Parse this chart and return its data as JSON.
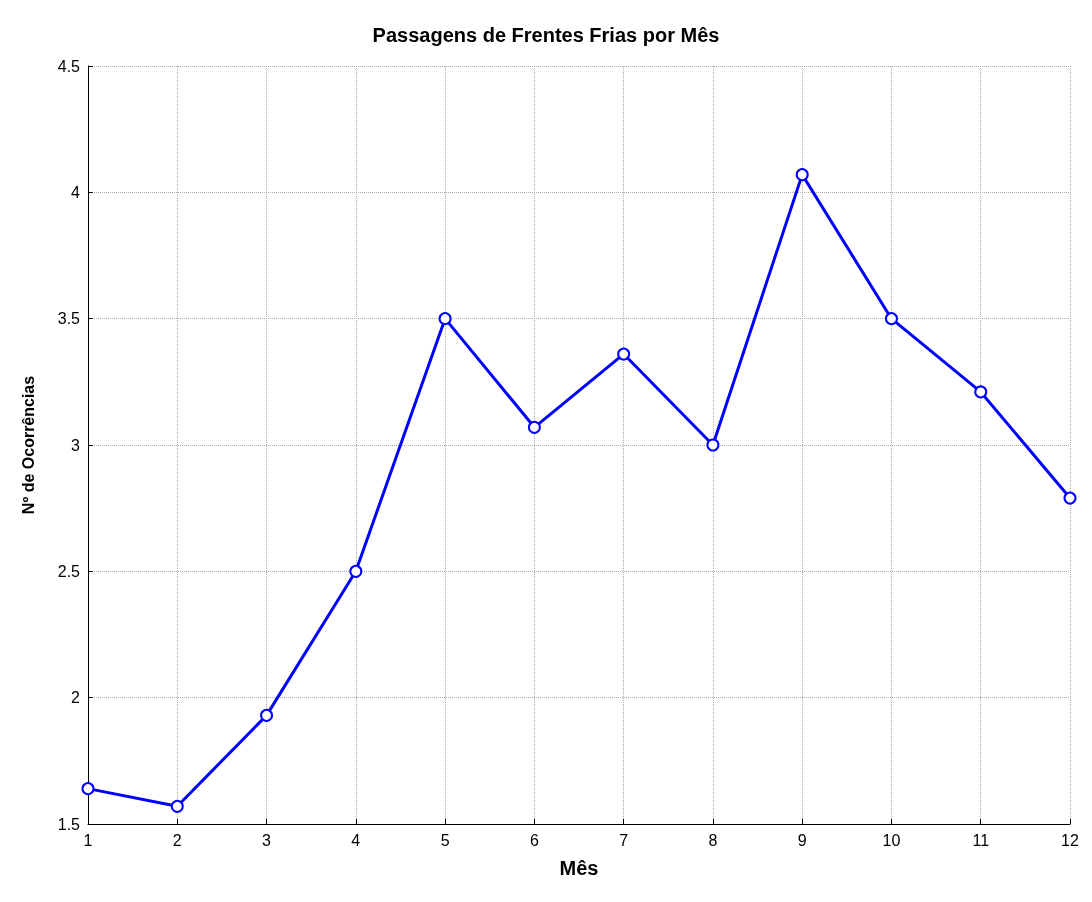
{
  "chart_data": {
    "type": "line",
    "title": "Passagens de Frentes Frias por Mês",
    "xlabel": "Mês",
    "ylabel": "Nº de Ocorrências",
    "x": [
      1,
      2,
      3,
      4,
      5,
      6,
      7,
      8,
      9,
      10,
      11,
      12
    ],
    "series": [
      {
        "color": "#0000ff",
        "values": [
          1.64,
          1.57,
          1.93,
          2.5,
          3.5,
          3.07,
          3.36,
          3,
          4.07,
          3.5,
          3.21,
          2.79
        ]
      }
    ],
    "xlim": [
      1,
      12
    ],
    "xticks": [
      1,
      2,
      3,
      4,
      5,
      6,
      7,
      8,
      9,
      10,
      11,
      12
    ],
    "ylim": [
      1.5,
      4.5
    ],
    "yticks": [
      1.5,
      2,
      2.5,
      3,
      3.5,
      4,
      4.5
    ],
    "grid": true,
    "marker": "circle",
    "line_style": "solid"
  }
}
